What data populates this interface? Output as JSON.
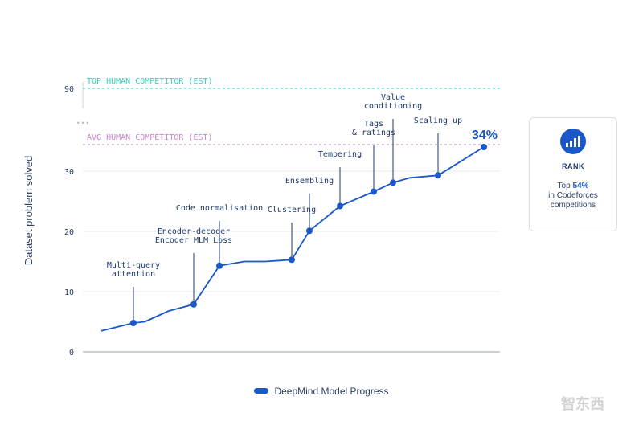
{
  "chart_data": {
    "type": "line",
    "ylabel": "Dataset problem solved",
    "xlabel": "",
    "y_ticks_lower": [
      0,
      10,
      20,
      30
    ],
    "y_tick_upper": "90",
    "axis_break_marker": "• • •",
    "ylim_lower": [
      0,
      31
    ],
    "reference_lines": [
      {
        "label": "TOP HUMAN COMPETITOR (EST)",
        "value": 90,
        "color": "#2fd3b5"
      },
      {
        "label": "AVG HUMAN COMPETITOR (EST)",
        "color": "#c783c8"
      }
    ],
    "series": [
      {
        "name": "DeepMind Model Progress",
        "color": "#1a57c9",
        "points": [
          {
            "x": 0,
            "y": 3.5
          },
          {
            "x": 1,
            "y": 4.8,
            "label": "Multi-query\nattention"
          },
          {
            "x": 2,
            "y": 5.0
          },
          {
            "x": 3,
            "y": 6.8
          },
          {
            "x": 4,
            "y": 7.9,
            "label": "Encoder-decoder\nEncoder MLM Loss"
          },
          {
            "x": 5,
            "y": 14.3,
            "label": "Code normalisation"
          },
          {
            "x": 6,
            "y": 15.0
          },
          {
            "x": 7,
            "y": 15.0
          },
          {
            "x": 8,
            "y": 15.3,
            "label": "Clustering"
          },
          {
            "x": 9,
            "y": 20.1,
            "label": "Ensembling"
          },
          {
            "x": 10,
            "y": 24.2,
            "label": "Tempering"
          },
          {
            "x": 11,
            "y": 26.6,
            "label": "Tags\n& ratings"
          },
          {
            "x": 12,
            "y": 28.1,
            "label": "Value\nconditioning"
          },
          {
            "x": 13,
            "y": 28.9
          },
          {
            "x": 14,
            "y": 29.3,
            "label": "Scaling up"
          },
          {
            "x": 15,
            "y": 34,
            "label": "34%"
          }
        ]
      }
    ],
    "legend": {
      "position": "bottom-center",
      "label": "DeepMind Model Progress"
    },
    "grid": true
  },
  "rank_card": {
    "icon": "bar-chart-icon",
    "title": "RANK",
    "line1_prefix": "Top ",
    "line1_value": "54%",
    "line2": "in Codeforces",
    "line3": "competitions"
  },
  "watermark": "智东西"
}
